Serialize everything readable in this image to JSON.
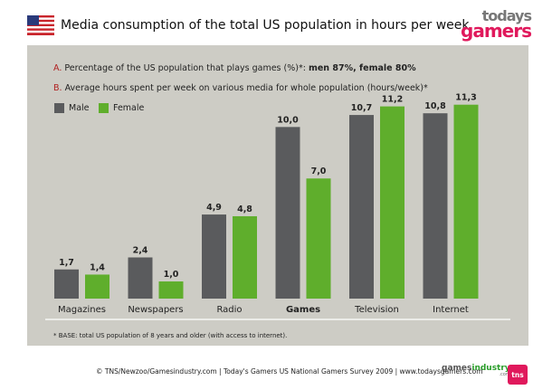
{
  "header": {
    "title": "Media consumption of the total US population in hours per week.",
    "flag_icon": "us-flag-icon",
    "logo_top": "todays",
    "logo_bottom": "gamers"
  },
  "notes": {
    "a_letter": "A.",
    "a_text": "Percentage of the US population that plays games (%)*:",
    "a_bold": "men 87%, female 80%",
    "b_letter": "B.",
    "b_text": "Average hours spent per week on various media for whole population (hours/week)*"
  },
  "chart_data": {
    "type": "bar",
    "categories": [
      "Magazines",
      "Newspapers",
      "Radio",
      "Games",
      "Television",
      "Internet"
    ],
    "series": [
      {
        "name": "Male",
        "values": [
          1.7,
          2.4,
          4.9,
          10.0,
          10.7,
          10.8
        ],
        "labels": [
          "1,7",
          "2,4",
          "4,9",
          "10,0",
          "10,7",
          "10,8"
        ],
        "color": "#5a5b5d"
      },
      {
        "name": "Female",
        "values": [
          1.4,
          1.0,
          4.8,
          7.0,
          11.2,
          11.3
        ],
        "labels": [
          "1,4",
          "1,0",
          "4,8",
          "7,0",
          "11,2",
          "11,3"
        ],
        "color": "#5fae2c"
      }
    ],
    "bold_category": "Games",
    "ylim": [
      0,
      11.3
    ],
    "grid": false,
    "legend_position": "top-left"
  },
  "footnote": "* BASE: total US population of 8 years and older (with access to internet).",
  "footer": {
    "credits": "© TNS/Newzoo/Gamesindustry.com | Today's Gamers US National Gamers Survey 2009 | www.todaysgamers.com",
    "games": "games",
    "industry": "industry",
    "dotcom": ".com",
    "tns": "tns"
  }
}
